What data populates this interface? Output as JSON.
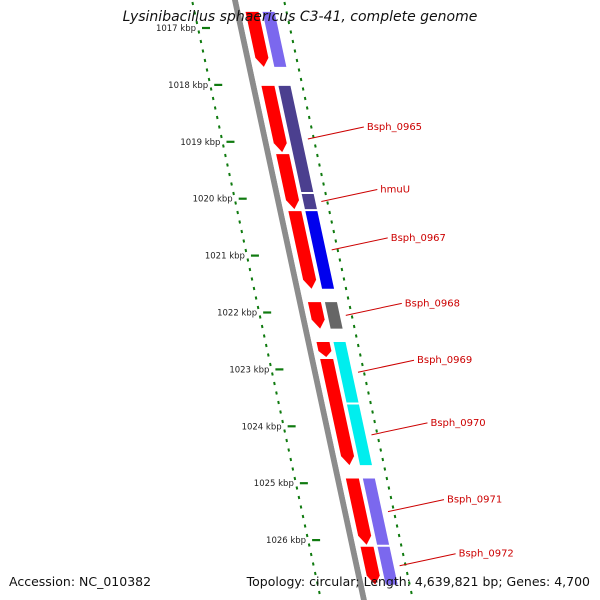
{
  "title": "Lysinibacillus sphaericus C3-41, complete genome",
  "footer": {
    "accession": "Accession: NC_010382",
    "summary": "Topology: circular; Length: 4,639,821 bp; Genes: 4,700"
  },
  "colors": {
    "backbone": "#8c8c8c",
    "ticks": "#0f7a0f",
    "cds": "#ff0000",
    "label": "#cc0000"
  },
  "axis": {
    "unit": "kbp",
    "ticks": [
      {
        "label": "1017 kbp",
        "kbp": 1017
      },
      {
        "label": "1018 kbp",
        "kbp": 1018
      },
      {
        "label": "1019 kbp",
        "kbp": 1019
      },
      {
        "label": "1020 kbp",
        "kbp": 1020
      },
      {
        "label": "1021 kbp",
        "kbp": 1021
      },
      {
        "label": "1022 kbp",
        "kbp": 1022
      },
      {
        "label": "1023 kbp",
        "kbp": 1023
      },
      {
        "label": "1024 kbp",
        "kbp": 1024
      },
      {
        "label": "1025 kbp",
        "kbp": 1025
      },
      {
        "label": "1026 kbp",
        "kbp": 1026
      }
    ]
  },
  "genes": [
    {
      "label": "",
      "start": 1016.7,
      "end": 1017.7,
      "color": "#7b68ee"
    },
    {
      "label": "Bsph_0965",
      "start": 1018.0,
      "end": 1019.9,
      "color": "#4b3f8f"
    },
    {
      "label": "hmuU",
      "start": 1019.9,
      "end": 1020.2,
      "color": "#4b3f8f"
    },
    {
      "label": "Bsph_0967",
      "start": 1020.2,
      "end": 1021.6,
      "color": "#0000ee"
    },
    {
      "label": "Bsph_0968",
      "start": 1021.8,
      "end": 1022.3,
      "color": "#666666"
    },
    {
      "label": "Bsph_0969",
      "start": 1022.5,
      "end": 1023.6,
      "color": "#00eeee"
    },
    {
      "label": "Bsph_0970",
      "start": 1023.6,
      "end": 1024.7,
      "color": "#00eeee"
    },
    {
      "label": "Bsph_0971",
      "start": 1024.9,
      "end": 1026.1,
      "color": "#7b68ee"
    },
    {
      "label": "Bsph_0972",
      "start": 1026.1,
      "end": 1026.8,
      "color": "#7b68ee"
    }
  ],
  "cds": [
    {
      "start": 1016.7,
      "end": 1017.7
    },
    {
      "start": 1018.0,
      "end": 1019.2
    },
    {
      "start": 1019.2,
      "end": 1020.2
    },
    {
      "start": 1020.2,
      "end": 1021.6
    },
    {
      "start": 1021.8,
      "end": 1022.3
    },
    {
      "start": 1022.5,
      "end": 1022.8
    },
    {
      "start": 1022.8,
      "end": 1024.7
    },
    {
      "start": 1024.9,
      "end": 1026.1
    },
    {
      "start": 1026.1,
      "end": 1026.8
    }
  ]
}
